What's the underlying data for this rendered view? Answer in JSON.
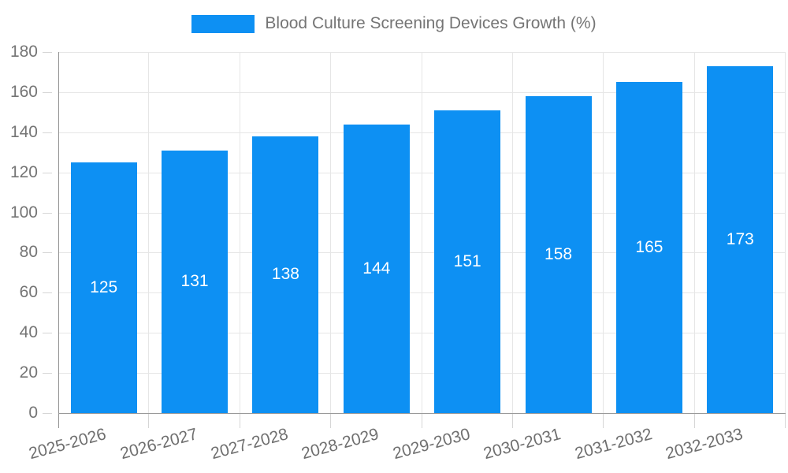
{
  "chart_data": {
    "type": "bar",
    "title": "Blood Culture Screening Devices Growth (%)",
    "legend_label": "Blood Culture Screening Devices Growth (%)",
    "legend_position": "top",
    "categories": [
      "2025-2026",
      "2026-2027",
      "2027-2028",
      "2028-2029",
      "2029-2030",
      "2030-2031",
      "2031-2032",
      "2032-2033"
    ],
    "values": [
      125,
      131,
      138,
      144,
      151,
      158,
      165,
      173
    ],
    "xlabel": "",
    "ylabel": "",
    "ylim": [
      0,
      180
    ],
    "yticks": [
      0,
      20,
      40,
      60,
      80,
      100,
      120,
      140,
      160,
      180
    ],
    "grid": true,
    "bar_color": "#0d90f3",
    "bar_label_color": "#ffffff",
    "axis_text_color": "#757575",
    "grid_color": "#e6e6e6",
    "axis_line_color": "#999999"
  }
}
